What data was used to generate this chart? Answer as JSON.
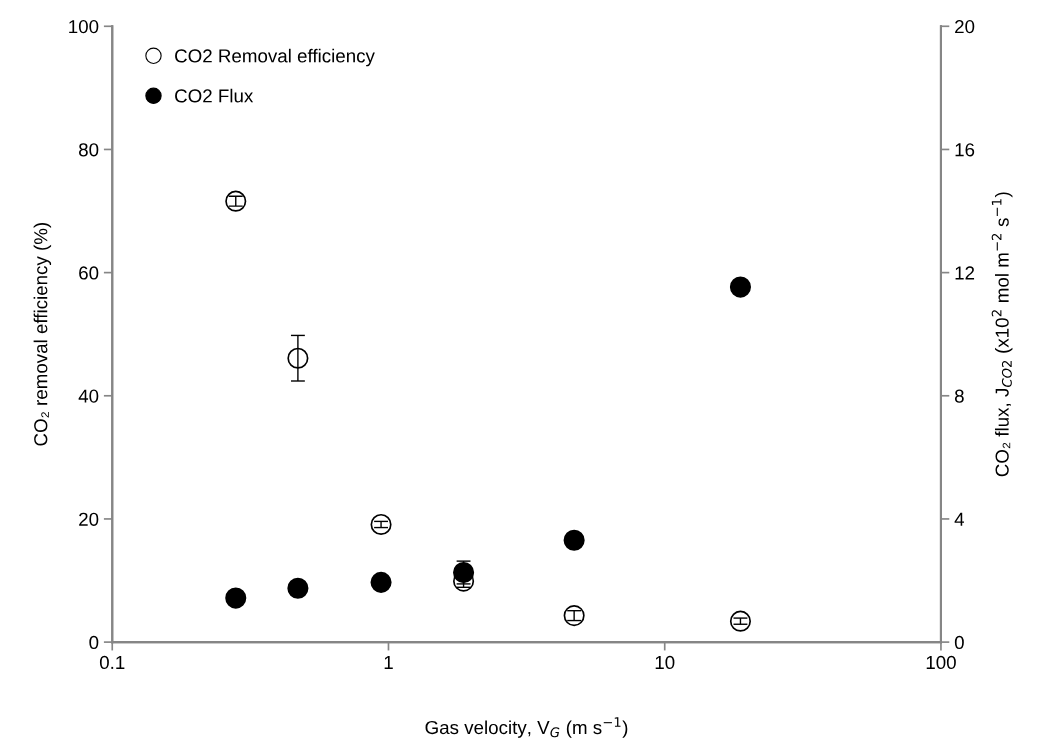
{
  "chart_data": {
    "type": "scatter",
    "xlabel": "Gas velocity, V$_{G}$ (m s$^{−1}$)",
    "ylabel": "CO₂ removal efficiency (%)",
    "y2label": "CO₂ flux, J$_{CO2}$ (x10$^{2}$ mol m$^{−2}$ s$^{−1}$)",
    "log": "x",
    "xlim": [
      0.1,
      100
    ],
    "xticks": [
      0.1,
      1,
      10,
      100
    ],
    "ylim": [
      0,
      100
    ],
    "yticks": [
      0,
      20,
      40,
      60,
      80,
      100
    ],
    "y2lim": [
      0,
      20
    ],
    "y2ticks": [
      0,
      4,
      8,
      12,
      16,
      20
    ],
    "grid": false,
    "legend": "top left",
    "marker": "circle",
    "series": [
      {
        "name": "CO2 Removal efficiency",
        "color": "#ffffff",
        "x": [
          0.28,
          0.47,
          0.94,
          1.87,
          4.7,
          18.8
        ],
        "values": [
          71.6,
          46.1,
          19.1,
          9.9,
          4.3,
          3.4
        ],
        "errors": [
          0.8,
          3.7,
          0.5,
          1.0,
          0.8,
          0.5
        ]
      },
      {
        "name": "CO2 Flux",
        "color": "#000000",
        "axis": "y2",
        "x": [
          0.28,
          0.47,
          0.94,
          1.87,
          4.7,
          18.8
        ],
        "values": [
          1.43,
          1.75,
          1.94,
          2.26,
          3.31,
          11.53
        ],
        "errors": [
          null,
          null,
          null,
          0.37,
          null,
          null
        ]
      }
    ]
  }
}
